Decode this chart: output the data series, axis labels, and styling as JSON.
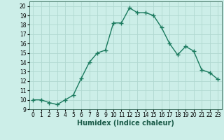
{
  "x": [
    0,
    1,
    2,
    3,
    4,
    5,
    6,
    7,
    8,
    9,
    10,
    11,
    12,
    13,
    14,
    15,
    16,
    17,
    18,
    19,
    20,
    21,
    22,
    23
  ],
  "y": [
    10.0,
    10.0,
    9.7,
    9.5,
    10.0,
    10.5,
    12.3,
    14.0,
    15.0,
    15.3,
    18.2,
    18.2,
    19.8,
    19.3,
    19.3,
    19.0,
    17.7,
    16.0,
    14.8,
    15.7,
    15.2,
    13.2,
    12.9,
    12.2
  ],
  "line_color": "#1a7a5e",
  "marker": "+",
  "marker_size": 4,
  "line_width": 1.0,
  "xlabel": "Humidex (Indice chaleur)",
  "xlabel_fontsize": 7,
  "xlim": [
    -0.5,
    23.5
  ],
  "ylim": [
    9,
    20.5
  ],
  "yticks": [
    9,
    10,
    11,
    12,
    13,
    14,
    15,
    16,
    17,
    18,
    19,
    20
  ],
  "xticks": [
    0,
    1,
    2,
    3,
    4,
    5,
    6,
    7,
    8,
    9,
    10,
    11,
    12,
    13,
    14,
    15,
    16,
    17,
    18,
    19,
    20,
    21,
    22,
    23
  ],
  "background_color": "#cceee8",
  "grid_color": "#b0d8d0",
  "tick_fontsize": 5.5,
  "spine_color": "#336655"
}
